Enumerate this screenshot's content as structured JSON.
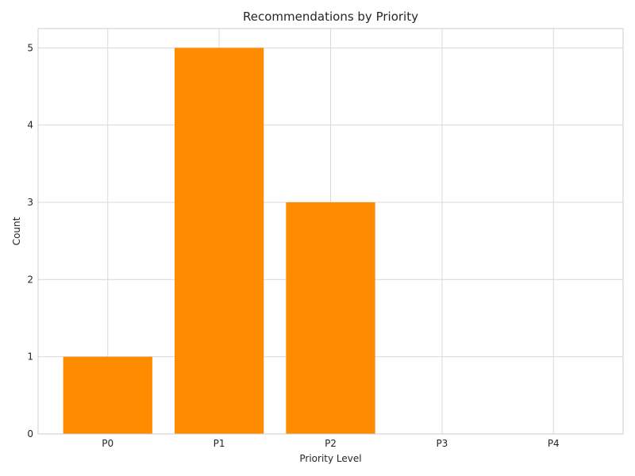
{
  "chart_data": {
    "type": "bar",
    "title": "Recommendations by Priority",
    "xlabel": "Priority Level",
    "ylabel": "Count",
    "categories": [
      "P0",
      "P1",
      "P2",
      "P3",
      "P4"
    ],
    "values": [
      1,
      5,
      3,
      0,
      0
    ],
    "ylim": [
      0,
      5.25
    ],
    "yticks": [
      0,
      1,
      2,
      3,
      4,
      5
    ],
    "grid": true,
    "legend": "none",
    "colors": {
      "bar": "#ff8c00",
      "grid": "#d9d9d9",
      "axes": "#cccccc",
      "text": "#262626"
    }
  }
}
